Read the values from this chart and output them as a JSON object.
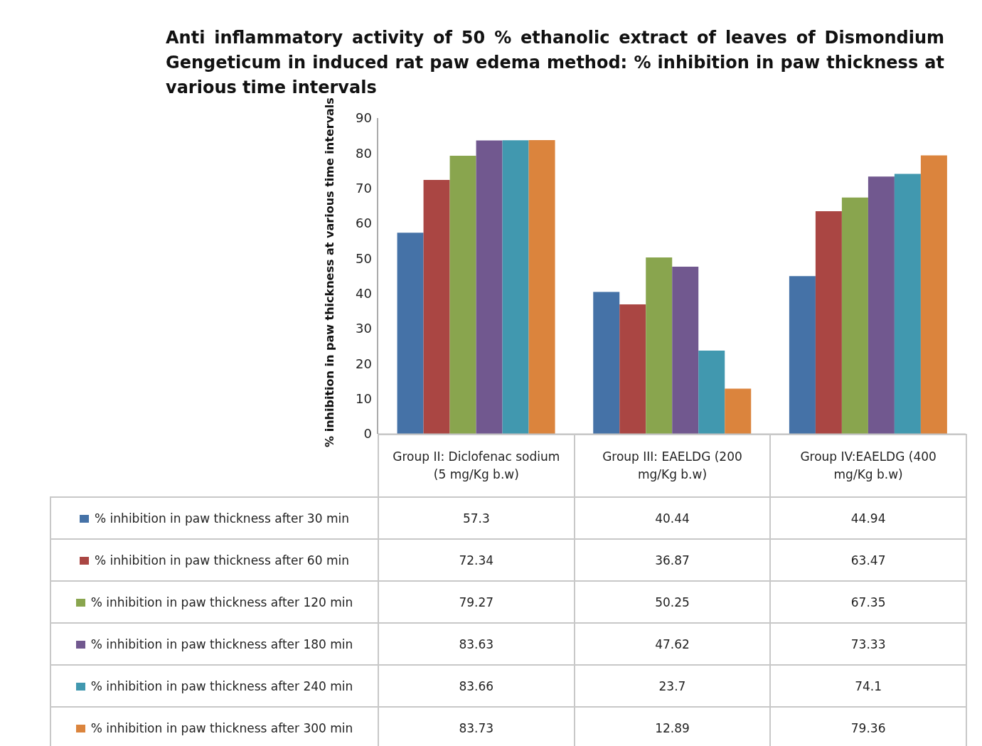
{
  "chart_data": {
    "type": "bar",
    "title": "Anti inflammatory activity of 50 % ethanolic extract of leaves of Dismondium Gengeticum  in induced rat paw edema method: % inhibition in paw thickness at various time intervals",
    "ylabel": "% inhibition in paw thickness at various time intervals",
    "categories": [
      "Group II: Diclofenac sodium (5 mg/Kg b.w)",
      "Group III: EAELDG (200 mg/Kg b.w)",
      "Group IV:EAELDG (400 mg/Kg b.w)"
    ],
    "series": [
      {
        "name": "% inhibition in paw thickness after 30 min",
        "color": "#4572a7",
        "values": [
          57.3,
          40.44,
          44.94
        ]
      },
      {
        "name": "% inhibition in paw thickness after 60 min",
        "color": "#aa4643",
        "values": [
          72.34,
          36.87,
          63.47
        ]
      },
      {
        "name": "% inhibition in paw thickness after 120 min",
        "color": "#89a54e",
        "values": [
          79.27,
          50.25,
          67.35
        ]
      },
      {
        "name": "% inhibition in paw thickness after 180 min",
        "color": "#71588f",
        "values": [
          83.63,
          47.62,
          73.33
        ]
      },
      {
        "name": "% inhibition in paw thickness after 240 min",
        "color": "#4198af",
        "values": [
          83.66,
          23.7,
          74.1
        ]
      },
      {
        "name": "% inhibition in paw thickness after 300 min",
        "color": "#db843d",
        "values": [
          83.73,
          12.89,
          79.36
        ]
      }
    ],
    "ylim": [
      0,
      90
    ],
    "yticks": [
      0,
      10,
      20,
      30,
      40,
      50,
      60,
      70,
      80,
      90
    ],
    "grid": false,
    "legend": "bottom",
    "data_labels": true
  }
}
